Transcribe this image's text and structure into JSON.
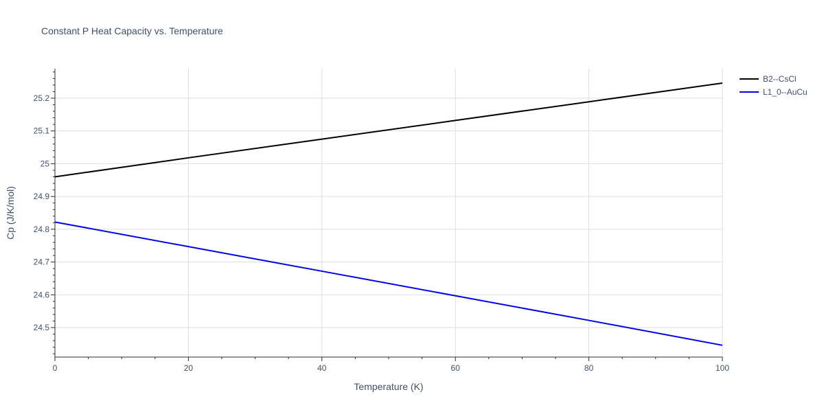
{
  "chart_data": {
    "type": "line",
    "title": "Constant P Heat Capacity vs. Temperature",
    "xlabel": "Temperature (K)",
    "ylabel": "Cp (J/K/mol)",
    "xlim": [
      0,
      100
    ],
    "ylim": [
      24.41,
      25.29
    ],
    "x_ticks": [
      0,
      20,
      40,
      60,
      80,
      100
    ],
    "y_ticks": [
      24.5,
      24.6,
      24.7,
      24.8,
      24.9,
      25,
      25.1,
      25.2
    ],
    "x_tick_labels": [
      "0",
      "20",
      "40",
      "60",
      "80",
      "100"
    ],
    "y_tick_labels": [
      "24.5",
      "24.6",
      "24.7",
      "24.8",
      "24.9",
      "25",
      "25.1",
      "25.2"
    ],
    "grid": true,
    "legend_position": "top-right",
    "series": [
      {
        "name": "B2--CsCl",
        "color": "#000000",
        "x": [
          0,
          20,
          40,
          60,
          80,
          100
        ],
        "y": [
          24.96,
          25.018,
          25.075,
          25.132,
          25.189,
          25.246
        ]
      },
      {
        "name": "L1_0--AuCu",
        "color": "#0000ee",
        "x": [
          0,
          20,
          40,
          60,
          80,
          100
        ],
        "y": [
          24.822,
          24.747,
          24.672,
          24.597,
          24.522,
          24.446
        ]
      }
    ]
  }
}
